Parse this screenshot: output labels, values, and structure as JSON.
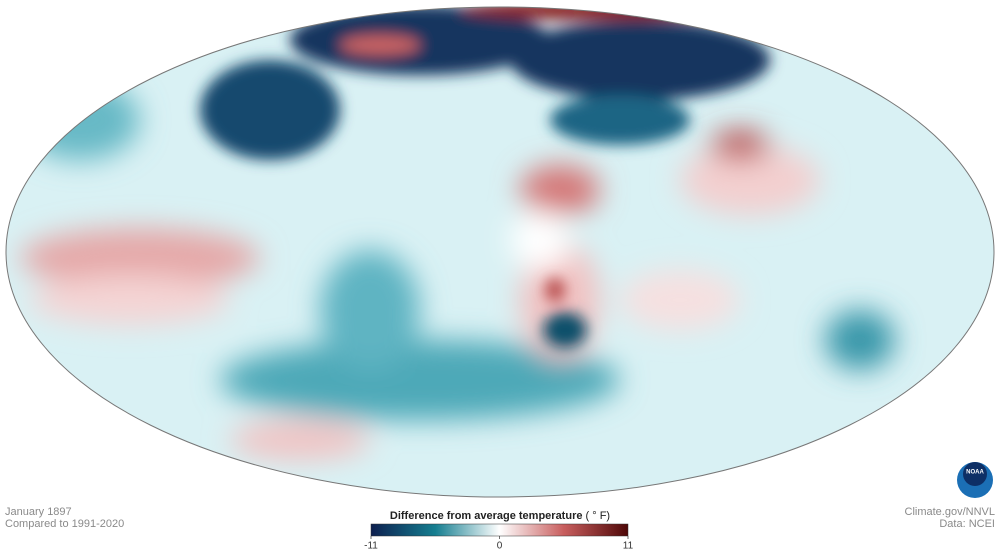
{
  "caption": {
    "date": "January 1897",
    "baseline": "Compared to 1991-2020"
  },
  "legend": {
    "title": "Difference from average temperature",
    "unit": "( ° F)",
    "range": [
      -11,
      11
    ],
    "ticks": [
      -11,
      0,
      11
    ]
  },
  "credits": {
    "source": "Climate.gov/NNVL",
    "data": "Data: NCEI",
    "logo": "NOAA"
  }
}
